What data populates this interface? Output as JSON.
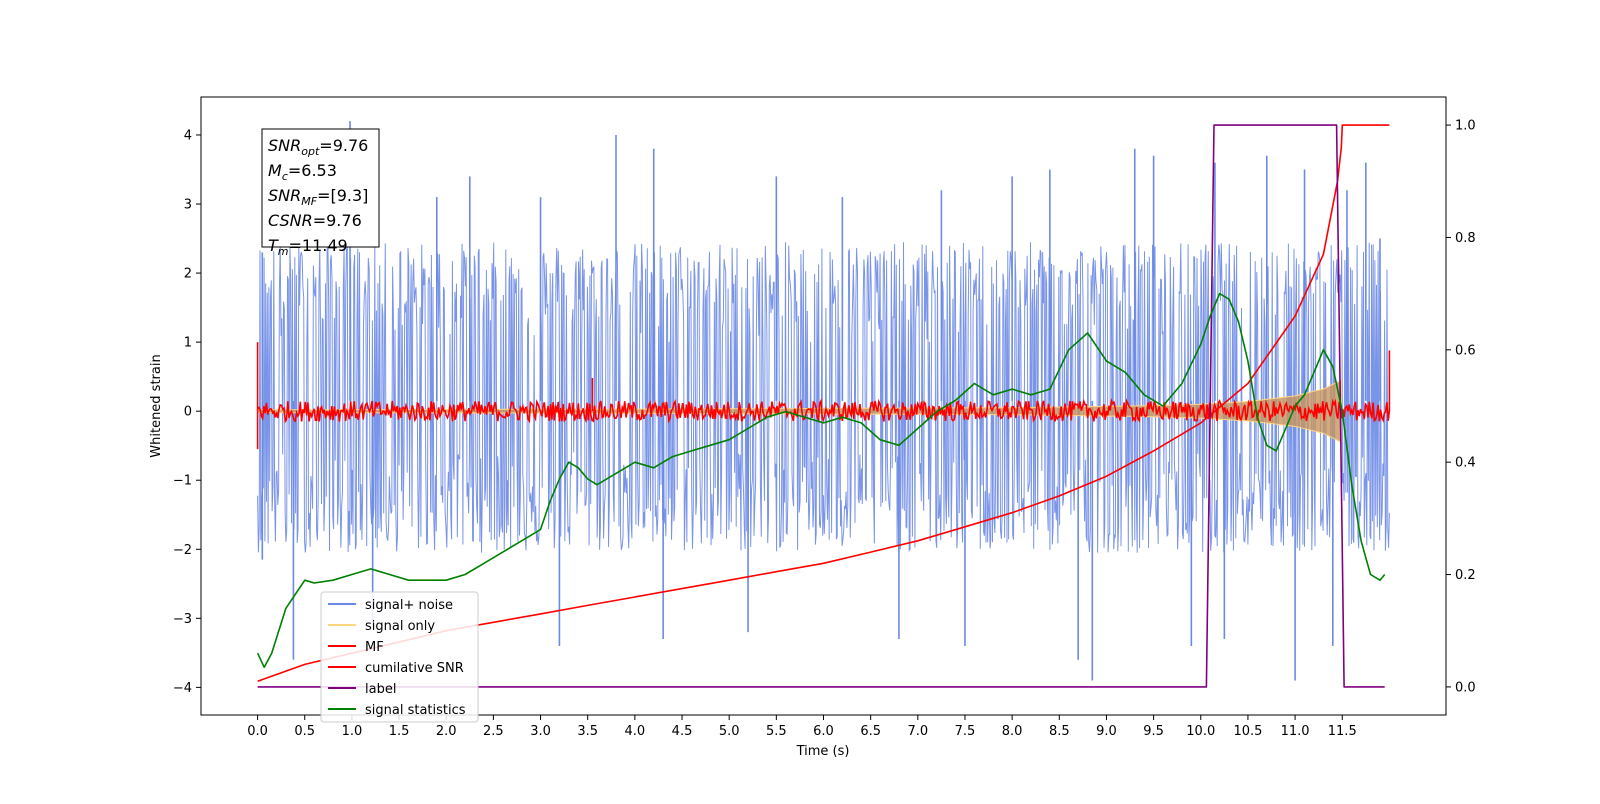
{
  "chart_data": {
    "type": "line",
    "xlabel": "Time (s)",
    "ylabel": "Whitened strain",
    "xlim": [
      -0.6,
      12.6
    ],
    "ylim": [
      -4.4,
      4.55
    ],
    "y2lim": [
      -0.05,
      1.05
    ],
    "x_ticks": [
      0.0,
      0.5,
      1.0,
      1.5,
      2.0,
      2.5,
      3.0,
      3.5,
      4.0,
      4.5,
      5.0,
      5.5,
      6.0,
      6.5,
      7.0,
      7.5,
      8.0,
      8.5,
      9.0,
      9.5,
      10.0,
      10.5,
      11.0,
      11.5
    ],
    "x_tick_labels": [
      "0.0",
      "0.5",
      "1.0",
      "1.5",
      "2.0",
      "2.5",
      "3.0",
      "3.5",
      "4.0",
      "4.5",
      "5.0",
      "5.5",
      "6.0",
      "6.5",
      "7.0",
      "7.5",
      "8.0",
      "8.5",
      "9.0",
      "9.5",
      "10.0",
      "10.5",
      "11.0",
      "11.5"
    ],
    "y_ticks": [
      -4,
      -3,
      -2,
      -1,
      0,
      1,
      2,
      3,
      4
    ],
    "y_tick_labels": [
      "−4",
      "−3",
      "−2",
      "−1",
      "0",
      "1",
      "2",
      "3",
      "4"
    ],
    "y2_ticks": [
      0.0,
      0.2,
      0.4,
      0.6,
      0.8,
      1.0
    ],
    "y2_tick_labels": [
      "0.0",
      "0.2",
      "0.4",
      "0.6",
      "0.8",
      "1.0"
    ],
    "grid": false,
    "legend_position": "lower-left",
    "info_box": [
      {
        "base": "SNR",
        "sub": "opt",
        "rest": "=9.76"
      },
      {
        "base": "M",
        "sub": "c",
        "rest": "=6.53"
      },
      {
        "base": "SNR",
        "sub": "MF",
        "rest": "=[9.3]"
      },
      {
        "base": "CSNR",
        "sub": "",
        "rest": "=9.76"
      },
      {
        "base": "T",
        "sub": "m",
        "rest": "=11.49"
      }
    ],
    "series": [
      {
        "name": "signal+ noise",
        "color": "#6b8ae6",
        "axis": "left",
        "description": "noisy whitened strain, band roughly between -2.2 and +2.3 with spikes to ±4",
        "envelope": {
          "x": [
            0.0,
            2.0,
            4.0,
            6.0,
            8.0,
            10.0,
            11.0,
            12.0
          ],
          "upper": [
            2.3,
            2.3,
            2.3,
            2.3,
            2.3,
            2.3,
            2.3,
            2.3
          ],
          "lower": [
            -2.2,
            -2.2,
            -2.2,
            -2.2,
            -2.2,
            -2.2,
            -2.2,
            -2.2
          ]
        },
        "spikes": [
          {
            "x": 0.05,
            "y": 2.3
          },
          {
            "x": 0.05,
            "y": -2.15
          },
          {
            "x": 0.38,
            "y": -3.6
          },
          {
            "x": 0.98,
            "y": 4.2
          },
          {
            "x": 1.22,
            "y": -3.1
          },
          {
            "x": 1.9,
            "y": 3.1
          },
          {
            "x": 2.25,
            "y": 3.4
          },
          {
            "x": 3.0,
            "y": 3.1
          },
          {
            "x": 3.2,
            "y": -3.4
          },
          {
            "x": 3.8,
            "y": 4.0
          },
          {
            "x": 4.2,
            "y": 3.8
          },
          {
            "x": 4.3,
            "y": -3.3
          },
          {
            "x": 5.2,
            "y": -3.2
          },
          {
            "x": 5.5,
            "y": 3.4
          },
          {
            "x": 6.2,
            "y": 3.1
          },
          {
            "x": 6.8,
            "y": -3.3
          },
          {
            "x": 7.25,
            "y": 3.2
          },
          {
            "x": 7.5,
            "y": -3.4
          },
          {
            "x": 8.0,
            "y": 3.4
          },
          {
            "x": 8.4,
            "y": 3.5
          },
          {
            "x": 8.7,
            "y": -3.6
          },
          {
            "x": 8.85,
            "y": -3.9
          },
          {
            "x": 9.3,
            "y": 3.8
          },
          {
            "x": 9.5,
            "y": 3.7
          },
          {
            "x": 9.9,
            "y": -3.4
          },
          {
            "x": 10.15,
            "y": 3.6
          },
          {
            "x": 10.25,
            "y": -3.3
          },
          {
            "x": 10.7,
            "y": 3.7
          },
          {
            "x": 11.0,
            "y": -3.9
          },
          {
            "x": 11.1,
            "y": 3.5
          },
          {
            "x": 11.4,
            "y": -3.4
          },
          {
            "x": 11.55,
            "y": 3.2
          },
          {
            "x": 11.75,
            "y": 3.6
          },
          {
            "x": 11.9,
            "y": 2.5
          }
        ]
      },
      {
        "name": "signal only",
        "color": "#ffd580",
        "axis": "left",
        "description": "chirp signal, amplitude grows from ~0.02 to ~0.45 before 11.49 s",
        "envelope": {
          "x": [
            0.0,
            4.0,
            8.0,
            9.5,
            10.0,
            10.5,
            11.0,
            11.3,
            11.49,
            11.5
          ],
          "amplitude": [
            0.02,
            0.03,
            0.05,
            0.08,
            0.1,
            0.14,
            0.22,
            0.32,
            0.45,
            0.0
          ]
        }
      },
      {
        "name": "MF",
        "color": "#ff0000",
        "axis": "left",
        "description": "matched-filter output, noisy band about ±0.2 around 0",
        "envelope": {
          "x": [
            0.0,
            12.0
          ],
          "upper": [
            0.15,
            0.15
          ],
          "lower": [
            -0.15,
            -0.15
          ]
        },
        "spikes": [
          {
            "x": 0.0,
            "y": 1.0
          },
          {
            "x": 0.0,
            "y": -0.55
          },
          {
            "x": 3.55,
            "y": 0.48
          },
          {
            "x": 12.0,
            "y": 0.88
          }
        ]
      },
      {
        "name": "cumilative SNR",
        "color": "#ff0000",
        "axis": "right",
        "x": [
          0.0,
          0.5,
          1.0,
          1.5,
          2.0,
          2.5,
          3.0,
          3.5,
          4.0,
          4.5,
          5.0,
          5.5,
          6.0,
          6.5,
          7.0,
          7.5,
          8.0,
          8.5,
          9.0,
          9.5,
          10.0,
          10.5,
          11.0,
          11.3,
          11.45,
          11.49,
          11.5,
          12.0
        ],
        "y": [
          0.01,
          0.04,
          0.06,
          0.08,
          0.1,
          0.115,
          0.13,
          0.145,
          0.16,
          0.175,
          0.19,
          0.205,
          0.22,
          0.24,
          0.26,
          0.285,
          0.31,
          0.34,
          0.375,
          0.42,
          0.47,
          0.54,
          0.66,
          0.77,
          0.9,
          0.96,
          1.0,
          1.0
        ]
      },
      {
        "name": "label",
        "color": "#800080",
        "axis": "right",
        "x": [
          0.0,
          10.06,
          10.14,
          11.44,
          11.52,
          11.95
        ],
        "y": [
          0.0,
          0.0,
          1.0,
          1.0,
          0.0,
          0.0
        ]
      },
      {
        "name": "signal statistics",
        "color": "#008000",
        "axis": "right",
        "x": [
          0.0,
          0.07,
          0.15,
          0.3,
          0.5,
          0.6,
          0.8,
          1.0,
          1.2,
          1.4,
          1.6,
          1.8,
          2.0,
          2.2,
          2.4,
          2.6,
          2.8,
          3.0,
          3.1,
          3.2,
          3.3,
          3.4,
          3.5,
          3.6,
          3.8,
          4.0,
          4.2,
          4.4,
          4.6,
          4.8,
          5.0,
          5.2,
          5.4,
          5.6,
          5.8,
          6.0,
          6.2,
          6.4,
          6.6,
          6.8,
          7.0,
          7.2,
          7.4,
          7.6,
          7.8,
          8.0,
          8.2,
          8.4,
          8.6,
          8.8,
          9.0,
          9.2,
          9.4,
          9.6,
          9.8,
          10.0,
          10.1,
          10.2,
          10.3,
          10.4,
          10.5,
          10.6,
          10.7,
          10.8,
          10.9,
          11.0,
          11.1,
          11.2,
          11.3,
          11.4,
          11.5,
          11.6,
          11.7,
          11.8,
          11.9,
          11.95
        ],
        "y": [
          0.06,
          0.035,
          0.06,
          0.14,
          0.19,
          0.185,
          0.19,
          0.2,
          0.21,
          0.2,
          0.19,
          0.19,
          0.19,
          0.2,
          0.22,
          0.24,
          0.26,
          0.28,
          0.33,
          0.37,
          0.4,
          0.39,
          0.37,
          0.36,
          0.38,
          0.4,
          0.39,
          0.41,
          0.42,
          0.43,
          0.44,
          0.46,
          0.48,
          0.49,
          0.48,
          0.47,
          0.48,
          0.47,
          0.44,
          0.43,
          0.46,
          0.49,
          0.51,
          0.54,
          0.52,
          0.53,
          0.52,
          0.53,
          0.6,
          0.63,
          0.58,
          0.56,
          0.52,
          0.5,
          0.54,
          0.61,
          0.66,
          0.7,
          0.69,
          0.65,
          0.58,
          0.48,
          0.43,
          0.42,
          0.46,
          0.5,
          0.52,
          0.56,
          0.6,
          0.57,
          0.49,
          0.36,
          0.26,
          0.2,
          0.19,
          0.2
        ]
      }
    ]
  }
}
